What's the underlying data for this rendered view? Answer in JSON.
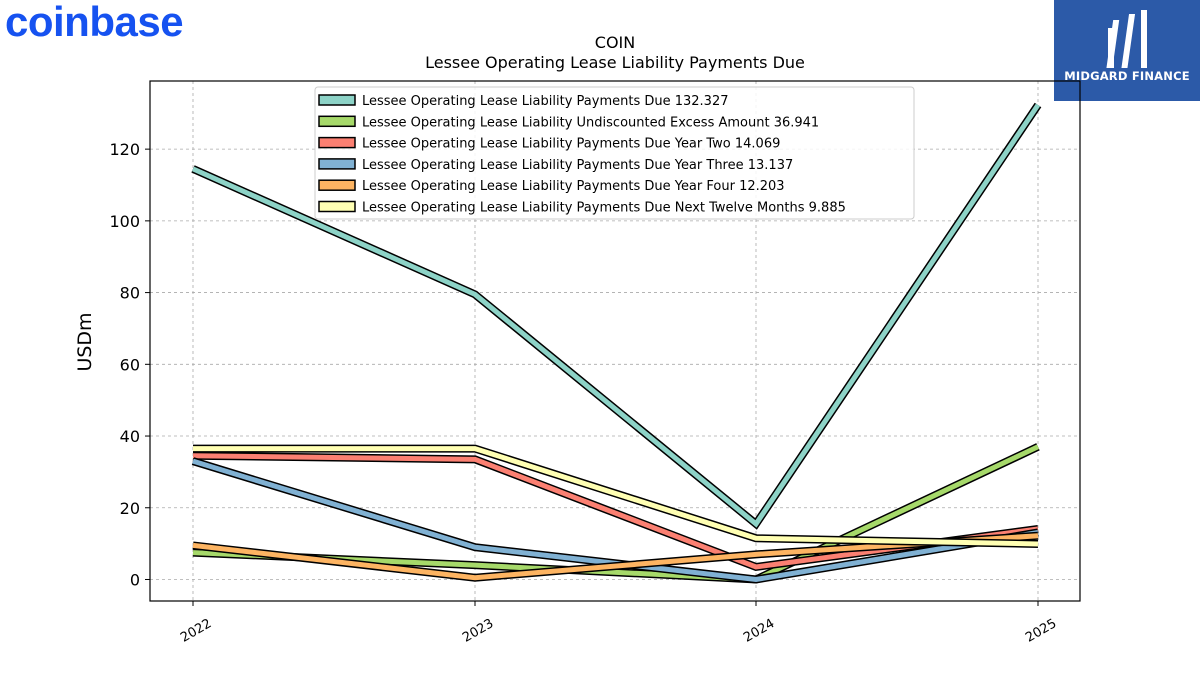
{
  "brand": {
    "logo_text": "coinbase",
    "badge_text": "MIDGARD FINANCE"
  },
  "colors": {
    "logo": "#1652f0",
    "badge_bg": "#2c5aa8"
  },
  "chart_data": {
    "type": "line",
    "title": "COIN",
    "subtitle": "Lessee Operating Lease Liability Payments Due",
    "ylabel": "USDm",
    "xlabel": "",
    "x": [
      "2022",
      "2023",
      "2024",
      "2025"
    ],
    "ylim": [
      -6,
      139
    ],
    "yticks": [
      0,
      20,
      40,
      60,
      80,
      100,
      120
    ],
    "grid": true,
    "legend_position": "top-center",
    "series": [
      {
        "name": "Lessee Operating Lease Liability Payments Due",
        "legend_value": "132.327",
        "color": "#8dd3c7",
        "values": [
          114.5,
          79.5,
          15.5,
          132.3
        ]
      },
      {
        "name": "Lessee Operating Lease Liability Undiscounted Excess Amount",
        "legend_value": "36.941",
        "color": "#a6d96a",
        "values": [
          7.5,
          4.0,
          0.0,
          37.0
        ]
      },
      {
        "name": "Lessee Operating Lease Liability Payments Due Year Two",
        "legend_value": "14.069",
        "color": "#fb8072",
        "values": [
          34.5,
          33.5,
          3.5,
          14.1
        ]
      },
      {
        "name": "Lessee Operating Lease Liability Payments Due Year Three",
        "legend_value": "13.137",
        "color": "#80b1d3",
        "values": [
          33.0,
          9.0,
          0.0,
          13.1
        ]
      },
      {
        "name": "Lessee Operating Lease Liability Payments Due Year Four",
        "legend_value": "12.203",
        "color": "#fdb462",
        "values": [
          9.5,
          0.5,
          7.0,
          12.2
        ]
      },
      {
        "name": "Lessee Operating Lease Liability Payments Due Next Twelve Months",
        "legend_value": "9.885",
        "color": "#ffffb3",
        "values": [
          36.5,
          36.5,
          11.5,
          9.9
        ]
      }
    ]
  }
}
